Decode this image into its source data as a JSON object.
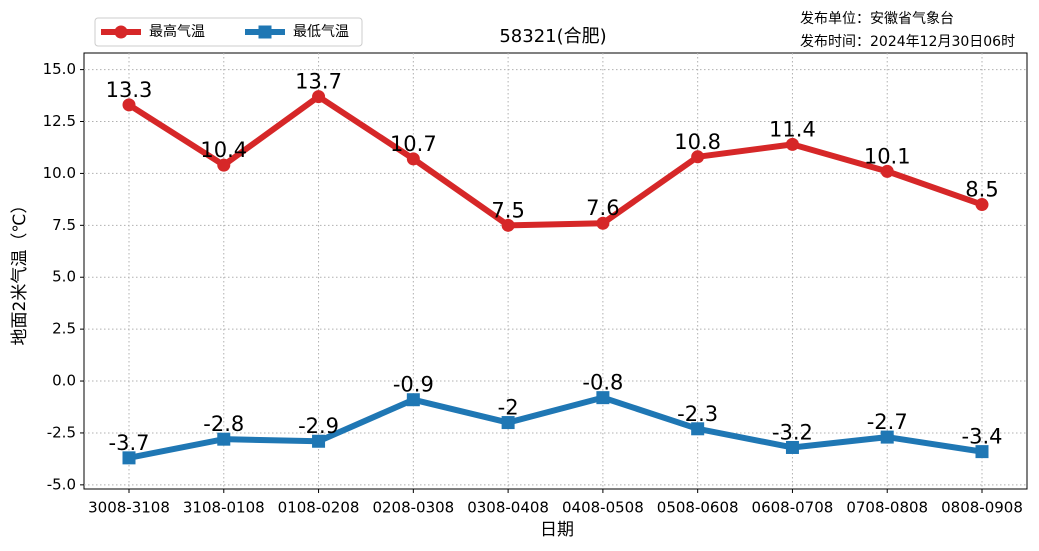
{
  "chart_data": {
    "type": "line",
    "title": "58321(合肥)",
    "publisher": "发布单位：安徽省气象台",
    "publish_time": "发布时间：2024年12月30日06时",
    "xlabel": "日期",
    "ylabel": "地面2米气温（℃）",
    "categories": [
      "3008-3108",
      "3108-0108",
      "0108-0208",
      "0208-0308",
      "0308-0408",
      "0408-0508",
      "0508-0608",
      "0608-0708",
      "0708-0808",
      "0808-0908"
    ],
    "series": [
      {
        "name": "最高气温",
        "color": "#d62728",
        "marker": "circle",
        "values": [
          13.3,
          10.4,
          13.7,
          10.7,
          7.5,
          7.6,
          10.8,
          11.4,
          10.1,
          8.5
        ]
      },
      {
        "name": "最低气温",
        "color": "#1f77b4",
        "marker": "square",
        "values": [
          -3.7,
          -2.8,
          -2.9,
          -0.9,
          -2.0,
          -0.8,
          -2.3,
          -3.2,
          -2.7,
          -3.4
        ]
      }
    ],
    "ylim": [
      -5.2,
      15.8
    ],
    "yticks": [
      {
        "value": -5,
        "label": "-5.0"
      },
      -2.5,
      {
        "value": 0,
        "label": "0.0"
      },
      2.5,
      {
        "value": 5,
        "label": "5.0"
      },
      7.5,
      {
        "value": 10,
        "label": "10.0"
      },
      12.5,
      {
        "value": 15,
        "label": "15.0"
      }
    ],
    "grid": true,
    "legend": "upper left"
  }
}
